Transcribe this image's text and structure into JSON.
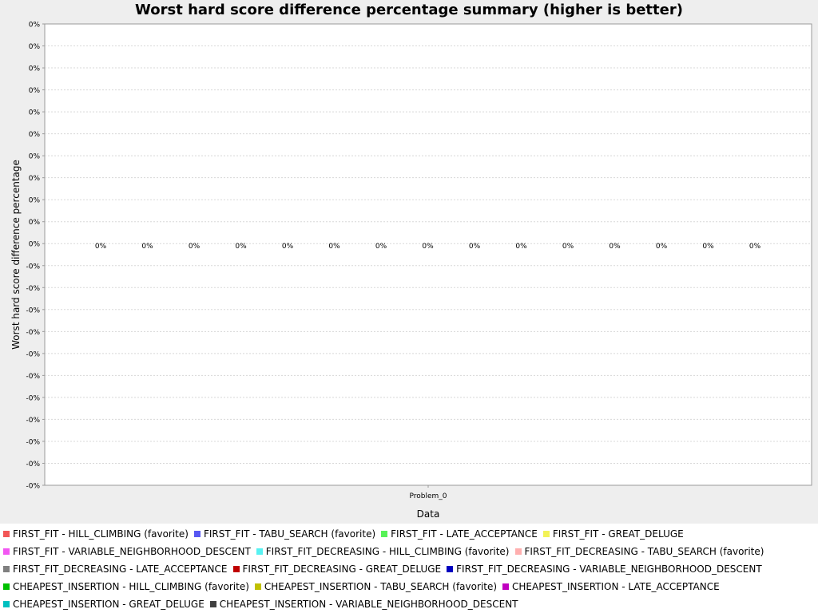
{
  "chart_data": {
    "type": "bar",
    "title": "Worst hard score difference percentage summary (higher is better)",
    "xlabel": "Data",
    "ylabel": "Worst hard score difference percentage",
    "categories": [
      "Problem_0"
    ],
    "y_tick_labels": [
      "0%",
      "0%",
      "0%",
      "0%",
      "0%",
      "0%",
      "0%",
      "0%",
      "0%",
      "0%",
      "0%",
      "-0%",
      "-0%",
      "-0%",
      "-0%",
      "-0%",
      "-0%",
      "-0%",
      "-0%",
      "-0%",
      "-0%",
      "-0%"
    ],
    "grid": true,
    "legend_position": "bottom",
    "series": [
      {
        "name": "FIRST_FIT - HILL_CLIMBING (favorite)",
        "color": "#f25757",
        "values": [
          0
        ],
        "label": "0%"
      },
      {
        "name": "FIRST_FIT - TABU_SEARCH (favorite)",
        "color": "#5757f2",
        "values": [
          0
        ],
        "label": "0%"
      },
      {
        "name": "FIRST_FIT - LATE_ACCEPTANCE",
        "color": "#57f257",
        "values": [
          0
        ],
        "label": "0%"
      },
      {
        "name": "FIRST_FIT - GREAT_DELUGE",
        "color": "#f2f257",
        "values": [
          0
        ],
        "label": "0%"
      },
      {
        "name": "FIRST_FIT - VARIABLE_NEIGHBORHOOD_DESCENT",
        "color": "#f257f2",
        "values": [
          0
        ],
        "label": "0%"
      },
      {
        "name": "FIRST_FIT_DECREASING - HILL_CLIMBING (favorite)",
        "color": "#57f2f2",
        "values": [
          0
        ],
        "label": "0%"
      },
      {
        "name": "FIRST_FIT_DECREASING - TABU_SEARCH (favorite)",
        "color": "#ffafaf",
        "values": [
          0
        ],
        "label": "0%"
      },
      {
        "name": "FIRST_FIT_DECREASING - LATE_ACCEPTANCE",
        "color": "#808080",
        "values": [
          0
        ],
        "label": "0%"
      },
      {
        "name": "FIRST_FIT_DECREASING - GREAT_DELUGE",
        "color": "#c00000",
        "values": [
          0
        ],
        "label": "0%"
      },
      {
        "name": "FIRST_FIT_DECREASING - VARIABLE_NEIGHBORHOOD_DESCENT",
        "color": "#0000c0",
        "values": [
          0
        ],
        "label": "0%"
      },
      {
        "name": "CHEAPEST_INSERTION - HILL_CLIMBING (favorite)",
        "color": "#00c000",
        "values": [
          0
        ],
        "label": "0%"
      },
      {
        "name": "CHEAPEST_INSERTION - TABU_SEARCH (favorite)",
        "color": "#c0c000",
        "values": [
          0
        ],
        "label": "0%"
      },
      {
        "name": "CHEAPEST_INSERTION - LATE_ACCEPTANCE",
        "color": "#c000c0",
        "values": [
          0
        ],
        "label": "0%"
      },
      {
        "name": "CHEAPEST_INSERTION - GREAT_DELUGE",
        "color": "#00c0c0",
        "values": [
          0
        ],
        "label": "0%"
      },
      {
        "name": "CHEAPEST_INSERTION - VARIABLE_NEIGHBORHOOD_DESCENT",
        "color": "#404040",
        "values": [
          0
        ],
        "label": "0%"
      }
    ]
  },
  "legend_rows": [
    [
      0,
      1,
      2,
      3
    ],
    [
      4,
      5,
      6
    ],
    [
      7,
      8,
      9
    ],
    [
      10,
      11,
      12
    ],
    [
      13,
      14
    ]
  ]
}
